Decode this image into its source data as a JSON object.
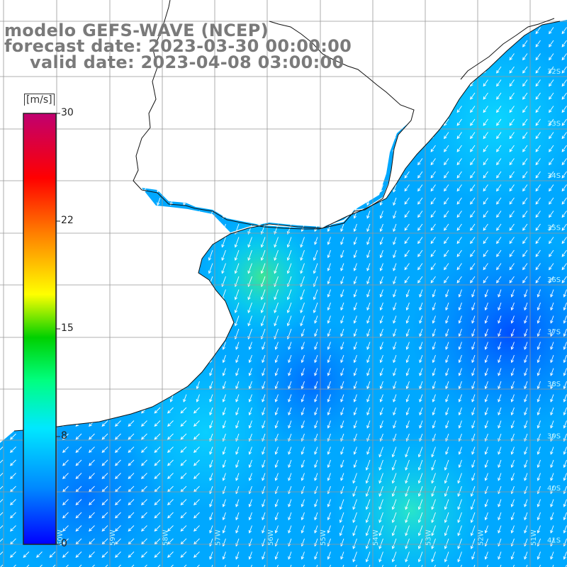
{
  "header": {
    "model_line": "modelo GEFS-WAVE (NCEP)",
    "forecast_line": "forecast date: 2023-03-30 00:00:00",
    "valid_line": "valid date: 2023-04-08 03:00:00"
  },
  "colorbar": {
    "units": "[m/s]",
    "min": 0,
    "max": 30,
    "ticks": [
      {
        "label": "30",
        "value": 30
      },
      {
        "label": "22",
        "value": 22
      },
      {
        "label": "15",
        "value": 15
      },
      {
        "label": "8",
        "value": 8
      },
      {
        "label": "0",
        "value": 0
      }
    ],
    "colors": [
      "#0000ff",
      "#0088ff",
      "#00e0ff",
      "#00ff88",
      "#00dd00",
      "#ffff00",
      "#ff8800",
      "#ff0000",
      "#c00070"
    ]
  },
  "map": {
    "ocean_color": "#00a8ff",
    "land_color": "#ffffff",
    "coast_color": "#111111",
    "grid_color": "#999999",
    "arrow_color": "#ffffff"
  },
  "grid_labels": {
    "right": [
      "32S",
      "33S",
      "34S",
      "35S",
      "36S",
      "37S",
      "38S",
      "39S",
      "40S",
      "41S"
    ],
    "bottom": [
      "60W",
      "59W",
      "58W",
      "57W",
      "56W",
      "55W",
      "54W",
      "53W",
      "52W",
      "51W"
    ]
  }
}
